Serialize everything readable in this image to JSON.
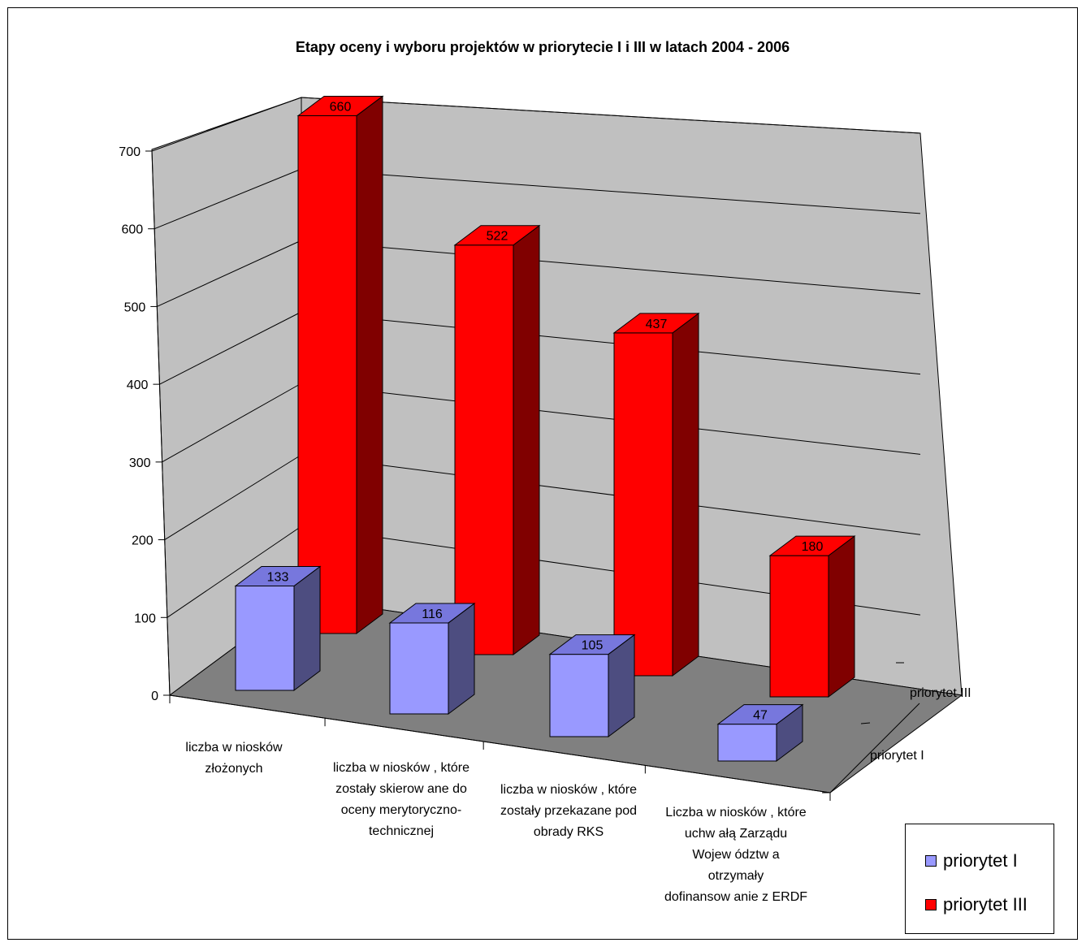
{
  "chart_data": {
    "type": "bar",
    "title": "Etapy oceny i wyboru projektów w priorytecie I i III w latach 2004 - 2006",
    "categories": [
      "liczba w niosków złożonych",
      "liczba w niosków , które zostały skierow ane do oceny merytoryczno-technicznej",
      "liczba w niosków , które zostały przekazane pod obrady RKS",
      "Liczba w niosków , które uchw ałą Zarządu Wojew ództw a otrzymały dofinansow anie z ERDF"
    ],
    "category_lines": [
      [
        "liczba w niosków",
        "złożonych"
      ],
      [
        "liczba w niosków , które",
        "zostały skierow ane do",
        "oceny merytoryczno-",
        "technicznej"
      ],
      [
        "liczba w niosków , które",
        "zostały przekazane pod",
        "obrady RKS"
      ],
      [
        "Liczba w niosków , które",
        "uchw ałą Zarządu",
        "Wojew ództw a",
        "otrzymały",
        "dofinansow anie z ERDF"
      ]
    ],
    "series": [
      {
        "name": "priorytet I",
        "values": [
          133,
          116,
          105,
          47
        ],
        "color": "#9999FF"
      },
      {
        "name": "priorytet III",
        "values": [
          660,
          522,
          437,
          180
        ],
        "color": "#FF0000"
      }
    ],
    "depth_labels": [
      "priorytet III",
      "priorytet I"
    ],
    "y_ticks": [
      "0",
      "100",
      "200",
      "300",
      "400",
      "500",
      "600",
      "700"
    ],
    "ylim": [
      0,
      700
    ],
    "grid": true,
    "legend_position": "bottom-right",
    "wall_color": "#C0C0C0",
    "floor_color": "#808080"
  },
  "legend": {
    "items": [
      {
        "label": "priorytet I",
        "color": "#9999FF"
      },
      {
        "label": "priorytet III",
        "color": "#FF0000"
      }
    ]
  }
}
